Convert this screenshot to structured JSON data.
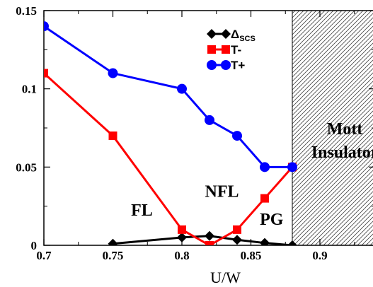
{
  "chart_data": {
    "type": "line",
    "xlabel": "U/W",
    "ylabel": "",
    "xlim": [
      0.7,
      0.94
    ],
    "ylim": [
      0,
      0.15
    ],
    "x_ticks": [
      "0.7",
      "0.75",
      "0.8",
      "0.85",
      "0.9"
    ],
    "y_ticks": [
      "0",
      "0.05",
      "0.1",
      "0.15"
    ],
    "x_tick_values": [
      0.7,
      0.75,
      0.8,
      0.85,
      0.9
    ],
    "y_tick_values": [
      0,
      0.05,
      0.1,
      0.15
    ],
    "legend_position": "top-right",
    "series": [
      {
        "name": "Δ",
        "name_subscript": "SCS",
        "color": "#000000",
        "marker": "diamond",
        "x": [
          0.75,
          0.8,
          0.82,
          0.84,
          0.86,
          0.88
        ],
        "y": [
          0.001,
          0.005,
          0.006,
          0.0035,
          0.0015,
          0.0
        ]
      },
      {
        "name": "T-",
        "name_subscript": "",
        "color": "#ff0000",
        "marker": "square",
        "x": [
          0.7,
          0.75,
          0.8,
          0.82,
          0.84,
          0.86,
          0.88
        ],
        "y": [
          0.11,
          0.07,
          0.01,
          0.0,
          0.01,
          0.03,
          0.05
        ]
      },
      {
        "name": "T+",
        "name_subscript": "",
        "color": "#0000ff",
        "marker": "circle",
        "x": [
          0.7,
          0.75,
          0.8,
          0.82,
          0.84,
          0.86,
          0.88
        ],
        "y": [
          0.14,
          0.11,
          0.1,
          0.08,
          0.07,
          0.05,
          0.05
        ]
      }
    ],
    "shaded_region": {
      "x_from": 0.88,
      "x_to": 0.94,
      "pattern": "diagonal-hatch"
    },
    "annotations": [
      {
        "text": "FL",
        "x": 0.771,
        "y": 0.019
      },
      {
        "text": "NFL",
        "x": 0.829,
        "y": 0.031
      },
      {
        "text": "PG",
        "x": 0.865,
        "y": 0.013
      },
      {
        "text": "Mott",
        "x": 0.918,
        "y": 0.071
      },
      {
        "text": "Insulator",
        "x": 0.918,
        "y": 0.056
      }
    ]
  }
}
